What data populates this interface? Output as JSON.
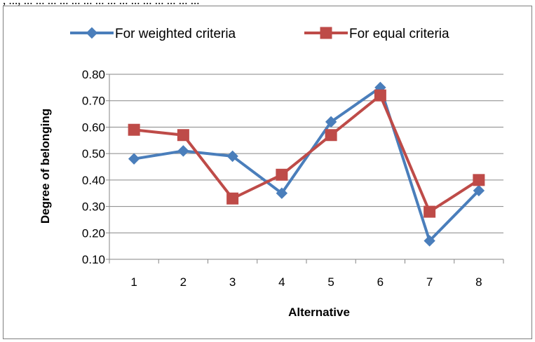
{
  "caption_fragment": ", ..., ... ... ... ... ... ... ... ... ... ... ... ... ... ... ...",
  "chart_data": {
    "type": "line",
    "title": "",
    "xlabel": "Alternative",
    "ylabel": "Degree of belonging",
    "categories": [
      "1",
      "2",
      "3",
      "4",
      "5",
      "6",
      "7",
      "8"
    ],
    "ylim": [
      0.1,
      0.8
    ],
    "yticks": [
      "0.10",
      "0.20",
      "0.30",
      "0.40",
      "0.50",
      "0.60",
      "0.70",
      "0.80"
    ],
    "grid": true,
    "legend_position": "top",
    "series": [
      {
        "name": "For weighted criteria",
        "color": "#4a7ebb",
        "marker": "diamond",
        "values": [
          0.48,
          0.51,
          0.49,
          0.35,
          0.62,
          0.75,
          0.17,
          0.36
        ]
      },
      {
        "name": "For equal criteria",
        "color": "#be4b48",
        "marker": "square",
        "values": [
          0.59,
          0.57,
          0.33,
          0.42,
          0.57,
          0.72,
          0.28,
          0.4
        ]
      }
    ]
  }
}
